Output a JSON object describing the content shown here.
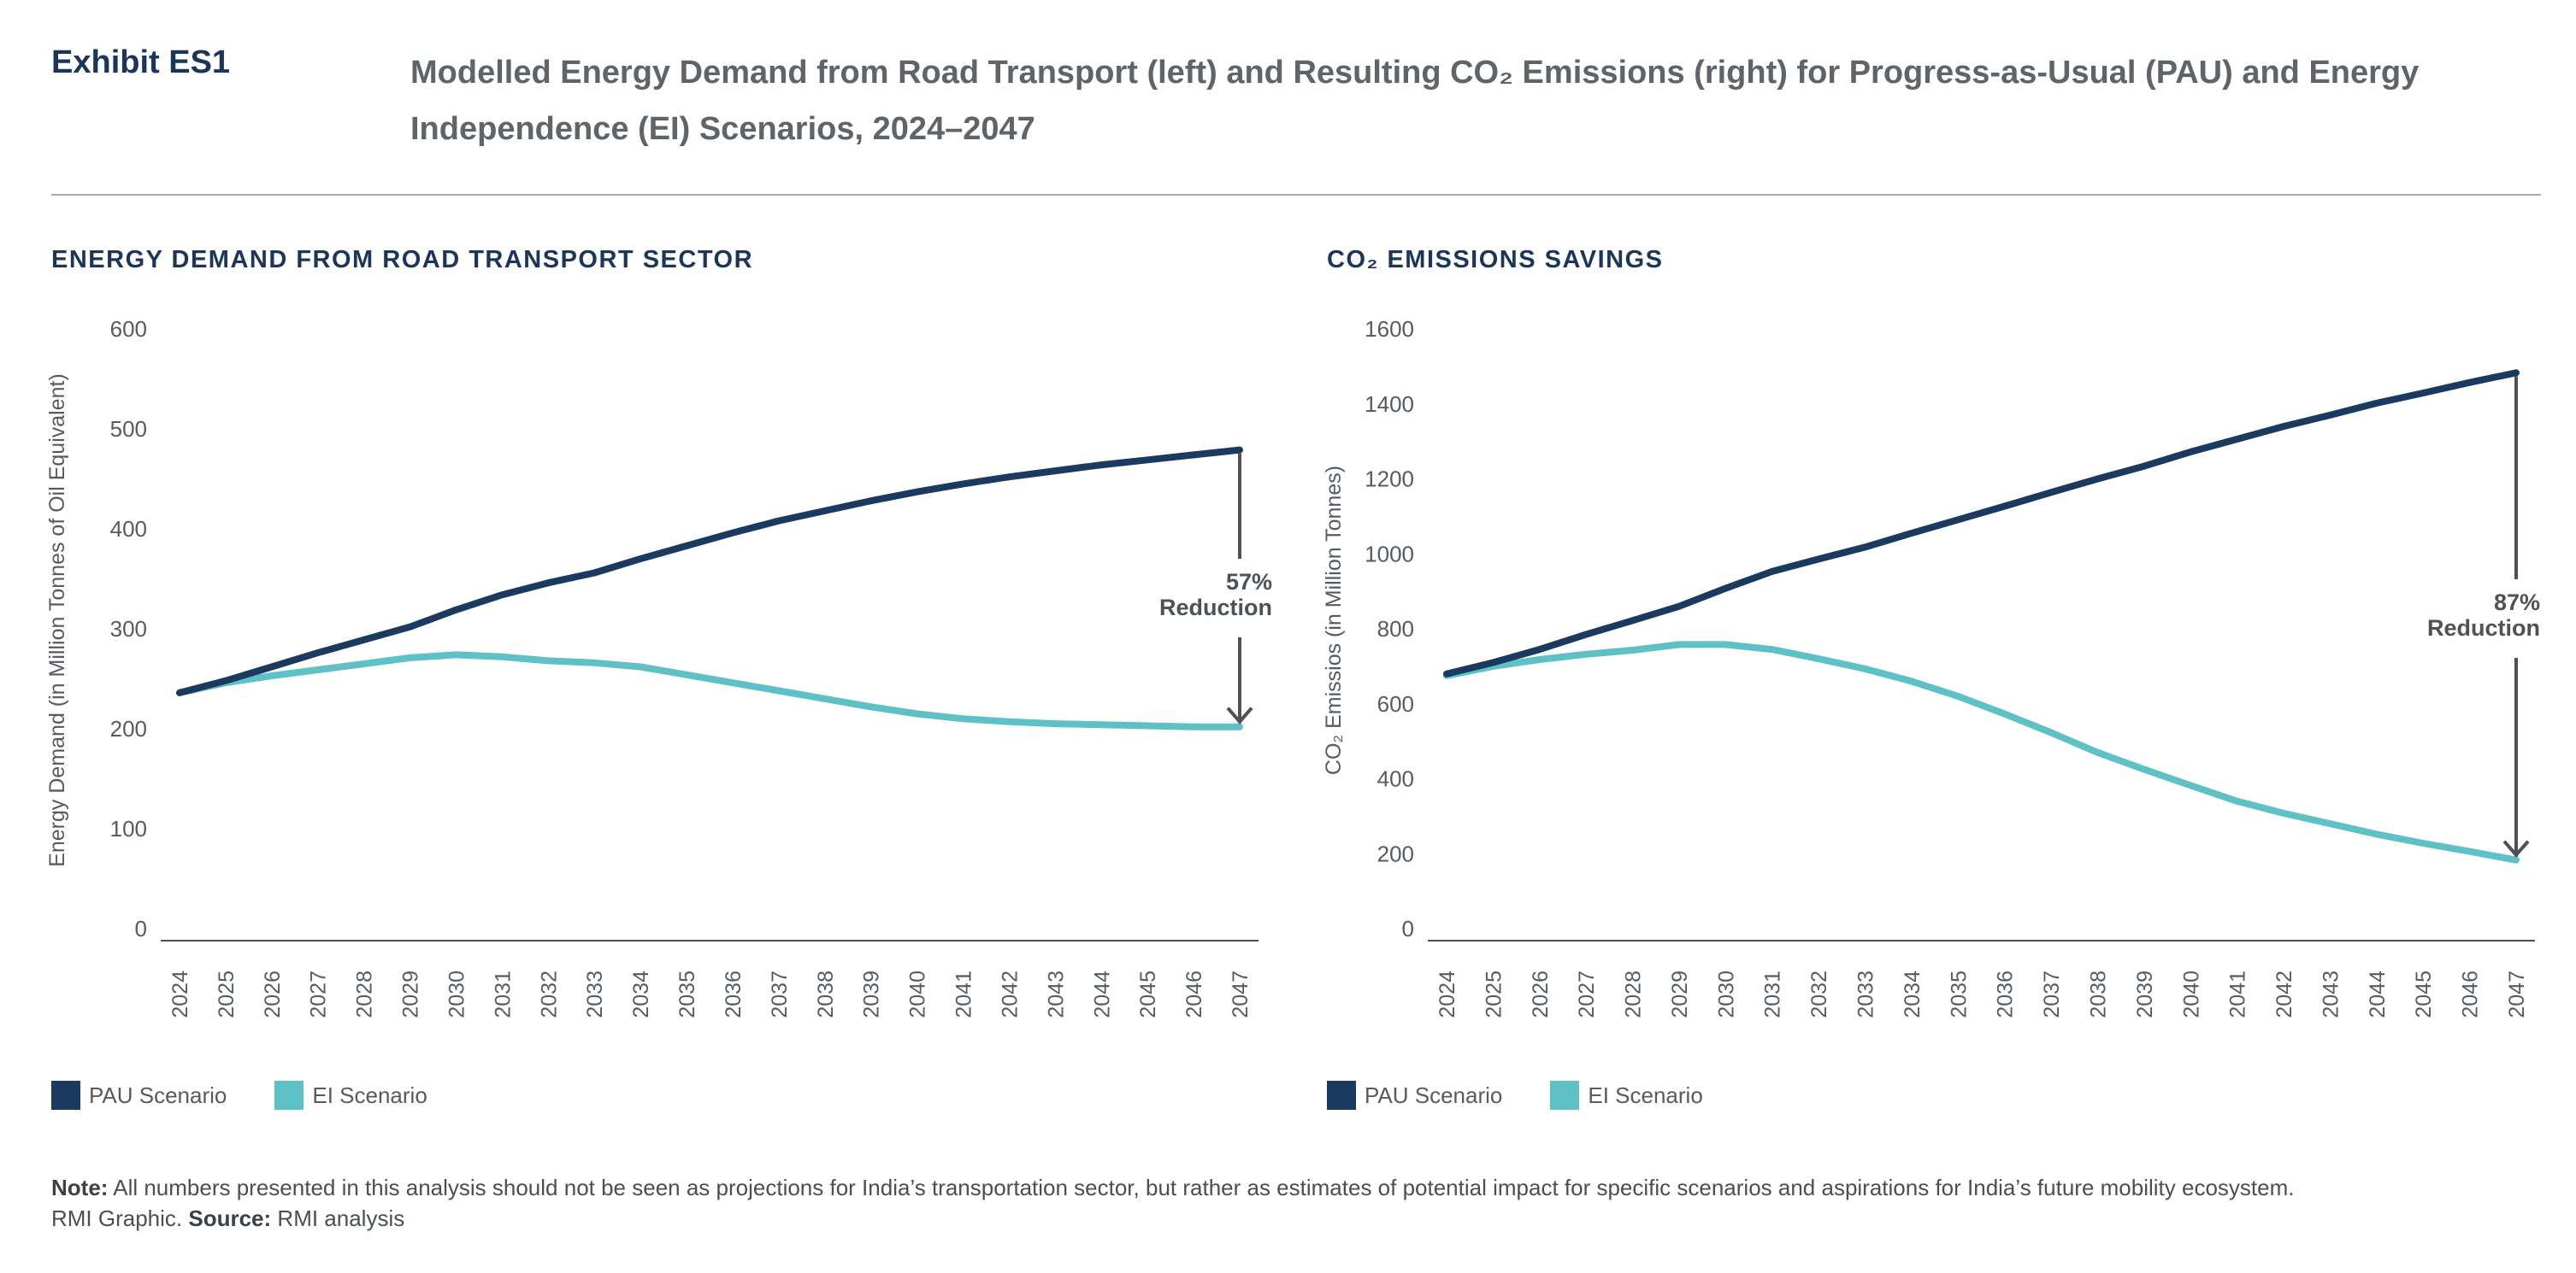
{
  "header": {
    "exhibit": "Exhibit ES1",
    "title": "Modelled Energy Demand from Road Transport (left) and Resulting CO₂ Emissions (right) for Progress-as-Usual (PAU) and Energy Independence (EI) Scenarios, 2024–2047"
  },
  "colors": {
    "pau": "#1b3a5f",
    "ei": "#5ec1c5",
    "arrow": "#4d5256",
    "axis": "#555b61",
    "title": "#1a3658"
  },
  "legend": {
    "pau": "PAU Scenario",
    "ei": "EI Scenario"
  },
  "chart_data": [
    {
      "type": "line",
      "title": "ENERGY DEMAND FROM ROAD TRANSPORT SECTOR",
      "xlabel": "",
      "ylabel": "Energy Demand (in Million Tonnes of Oil Equivalent)",
      "ylim": [
        0,
        600
      ],
      "yticks": [
        0,
        100,
        200,
        300,
        400,
        500,
        600
      ],
      "grid": false,
      "legend_position": "bottom-left",
      "categories": [
        "2024",
        "2025",
        "2026",
        "2027",
        "2028",
        "2029",
        "2030",
        "2031",
        "2032",
        "2033",
        "2034",
        "2035",
        "2036",
        "2037",
        "2038",
        "2039",
        "2040",
        "2041",
        "2042",
        "2043",
        "2044",
        "2045",
        "2046",
        "2047"
      ],
      "series": [
        {
          "name": "PAU Scenario",
          "color_key": "pau",
          "values": [
            236,
            248,
            262,
            276,
            289,
            302,
            319,
            334,
            346,
            356,
            370,
            383,
            396,
            408,
            418,
            428,
            437,
            445,
            452,
            458,
            464,
            469,
            474,
            479
          ]
        },
        {
          "name": "EI Scenario",
          "color_key": "ei",
          "values": [
            236,
            246,
            253,
            259,
            265,
            271,
            274,
            272,
            268,
            266,
            262,
            254,
            246,
            238,
            230,
            222,
            215,
            210,
            207,
            205,
            204,
            203,
            202,
            202
          ]
        }
      ],
      "annotation": {
        "line1": "57%",
        "line2": "Reduction"
      }
    },
    {
      "type": "line",
      "title": "CO₂ EMISSIONS SAVINGS",
      "xlabel": "",
      "ylabel": "CO₂ Emissios (in Million Tonnes)",
      "ylim": [
        0,
        1600
      ],
      "yticks": [
        0,
        200,
        400,
        600,
        800,
        1000,
        1200,
        1400,
        1600
      ],
      "grid": false,
      "legend_position": "bottom-left",
      "categories": [
        "2024",
        "2025",
        "2026",
        "2027",
        "2028",
        "2029",
        "2030",
        "2031",
        "2032",
        "2033",
        "2034",
        "2035",
        "2036",
        "2037",
        "2038",
        "2039",
        "2040",
        "2041",
        "2042",
        "2043",
        "2044",
        "2045",
        "2046",
        "2047"
      ],
      "series": [
        {
          "name": "PAU Scenario",
          "color_key": "pau",
          "values": [
            680,
            710,
            745,
            785,
            822,
            860,
            908,
            953,
            986,
            1018,
            1055,
            1091,
            1127,
            1164,
            1200,
            1234,
            1272,
            1306,
            1340,
            1370,
            1402,
            1429,
            1457,
            1483
          ]
        },
        {
          "name": "EI Scenario",
          "color_key": "ei",
          "values": [
            675,
            700,
            718,
            732,
            743,
            758,
            758,
            745,
            720,
            693,
            660,
            620,
            573,
            523,
            470,
            425,
            382,
            340,
            308,
            280,
            252,
            228,
            206,
            183
          ]
        }
      ],
      "annotation": {
        "line1": "87%",
        "line2": "Reduction"
      }
    }
  ],
  "footnote": {
    "note_label": "Note:",
    "note_text": " All numbers presented in this analysis should not be seen as projections for India’s transportation sector, but rather as estimates of potential impact for specific scenarios and aspirations for India’s future mobility ecosystem.",
    "graphic": "RMI Graphic. ",
    "source_label": "Source:",
    "source_text": " RMI analysis"
  }
}
